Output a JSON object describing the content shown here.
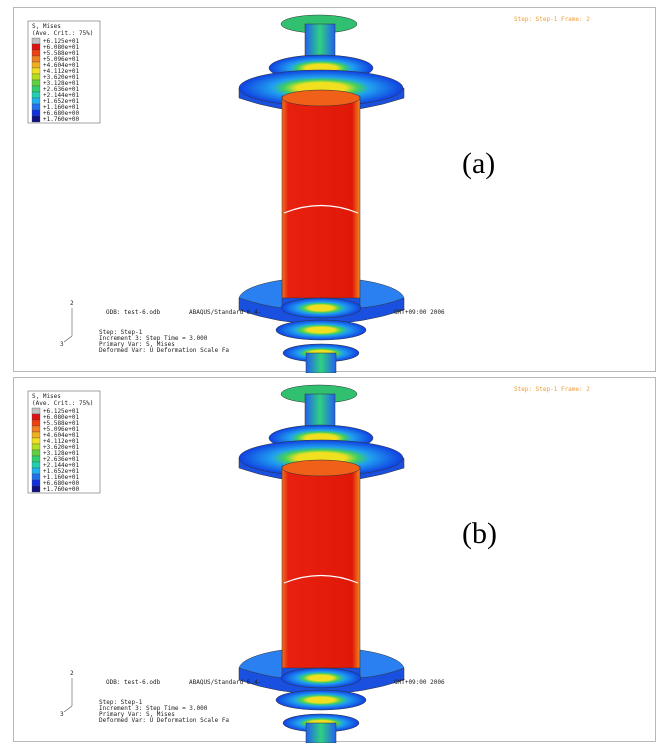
{
  "panels": [
    {
      "label": "(a)",
      "legend": {
        "title": "S, Mises",
        "subtitle": "(Ave. Crit.: 75%)",
        "values": [
          "+6.125e+01",
          "+6.080e+01",
          "+5.588e+01",
          "+5.096e+01",
          "+4.604e+01",
          "+4.112e+01",
          "+3.620e+01",
          "+3.128e+01",
          "+2.636e+01",
          "+2.144e+01",
          "+1.652e+01",
          "+1.160e+01",
          "+6.680e+00",
          "+1.760e+00"
        ]
      },
      "step_frame": "Step: Step-1   Frame: 2",
      "triad": [
        "2",
        "3"
      ],
      "info": {
        "odb": "ODB: test-6.odb",
        "version": "ABAQUS/Standard 6.4-",
        "date": "GMT+09:00 2006",
        "step": "Step: Step-1",
        "increment": "Increment    3: Step Time =    3.000",
        "primary": "Primary Var: S, Mises",
        "deformed": "Deformed Var: U   Deformation Scale Fa"
      }
    },
    {
      "label": "(b)",
      "legend": {
        "title": "S, Mises",
        "subtitle": "(Ave. Crit.: 75%)",
        "values": [
          "+6.125e+01",
          "+6.080e+01",
          "+5.588e+01",
          "+5.096e+01",
          "+4.604e+01",
          "+4.112e+01",
          "+3.620e+01",
          "+3.128e+01",
          "+2.636e+01",
          "+2.144e+01",
          "+1.652e+01",
          "+1.160e+01",
          "+6.680e+00",
          "+1.760e+00"
        ]
      },
      "step_frame": "Step: Step-1   Frame: 2",
      "triad": [
        "2",
        "3"
      ],
      "info": {
        "odb": "ODB: test-6.odb",
        "version": "ABAQUS/Standard 6.4-",
        "date": "GMT+09:00 2006",
        "step": "Step: Step-1",
        "increment": "Increment    3: Step Time =    3.000",
        "primary": "Primary Var: S, Mises",
        "deformed": "Deformed Var: U   Deformation Scale Fa"
      }
    }
  ]
}
